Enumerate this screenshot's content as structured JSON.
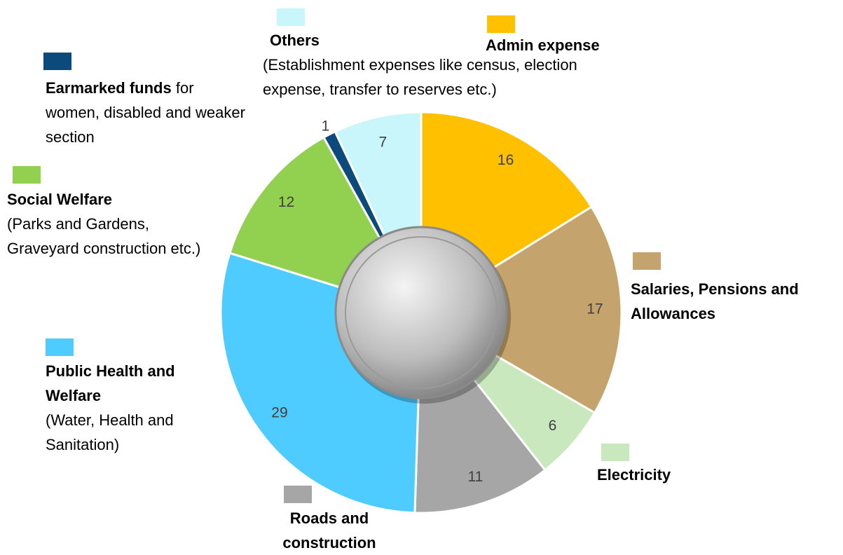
{
  "chart_data": {
    "type": "pie",
    "categories": [
      "Admin expense",
      "Salaries, Pensions and Allowances",
      "Electricity",
      "Roads and construction",
      "Public Health and Welfare",
      "Social Welfare",
      "Earmarked funds",
      "Others"
    ],
    "descriptions": [
      null,
      null,
      null,
      null,
      "(Water, Health and Sanitation)",
      "(Parks and Gardens, Graveyard construction etc.)",
      "for women, disabled and weaker section",
      "(Establishment expenses like census, election expense, transfer to reserves etc.)"
    ],
    "values": [
      16,
      17,
      6,
      11,
      29,
      12,
      1,
      7
    ],
    "colors": [
      "#FFC000",
      "#C4A46C",
      "#C9E8BE",
      "#A6A6A6",
      "#4FCCFF",
      "#92D050",
      "#0B4A7A",
      "#C8F6FA"
    ]
  }
}
